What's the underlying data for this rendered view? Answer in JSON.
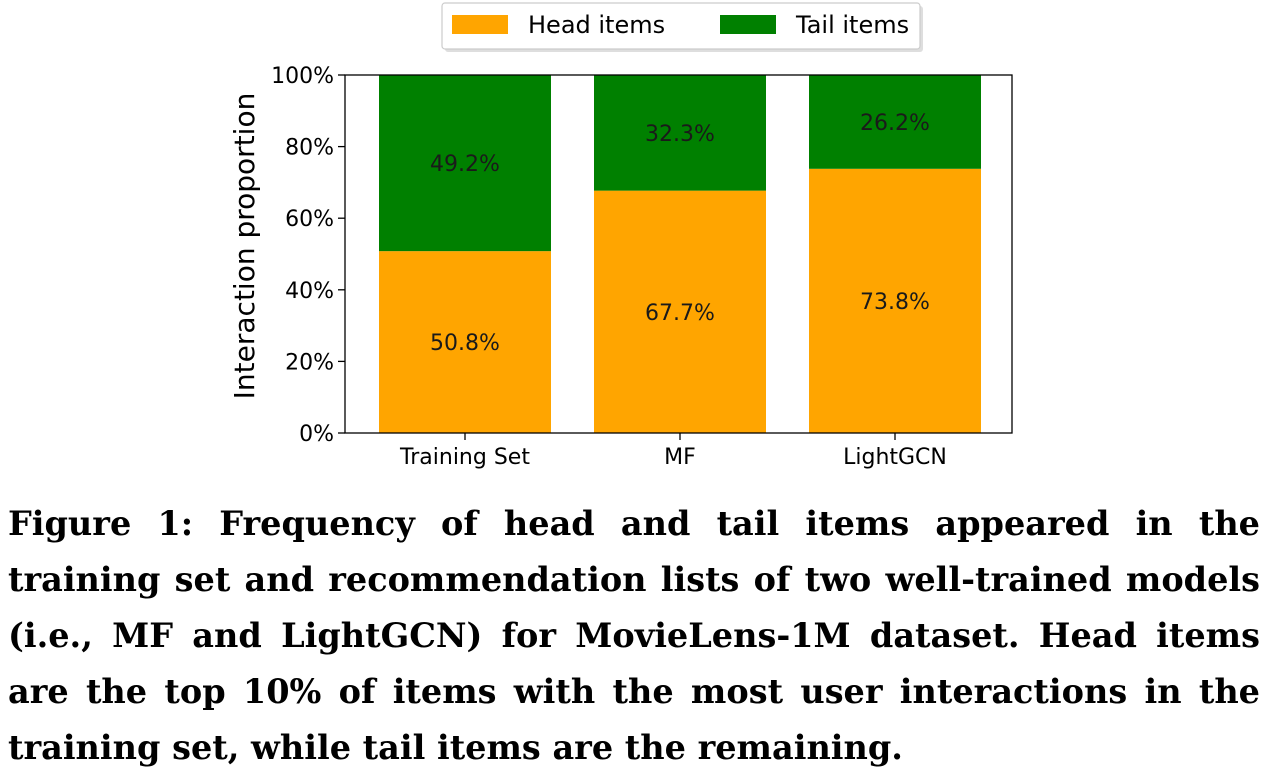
{
  "chart_data": {
    "type": "bar",
    "stacked": true,
    "categories": [
      "Training Set",
      "MF",
      "LightGCN"
    ],
    "series": [
      {
        "name": "Head items",
        "values": [
          50.8,
          67.7,
          73.8
        ],
        "labels": [
          "50.8%",
          "67.7%",
          "73.8%"
        ],
        "color": "#ffa500"
      },
      {
        "name": "Tail items",
        "values": [
          49.2,
          32.3,
          26.2
        ],
        "labels": [
          "49.2%",
          "32.3%",
          "26.2%"
        ],
        "color": "#008000"
      }
    ],
    "ylabel": "Interaction proportion",
    "ylim": [
      0,
      100
    ],
    "yticks": [
      "0%",
      "20%",
      "40%",
      "60%",
      "80%",
      "100%"
    ],
    "legend_position": "top-center",
    "grid": false
  },
  "caption": "Figure 1: Frequency of head and tail items appeared in the training set and recommendation lists of two well-trained models (i.e., MF and LightGCN) for MovieLens-1M dataset. Head items are the top 10% of items with the most user inter­actions in the training set, while tail items are the remaining."
}
